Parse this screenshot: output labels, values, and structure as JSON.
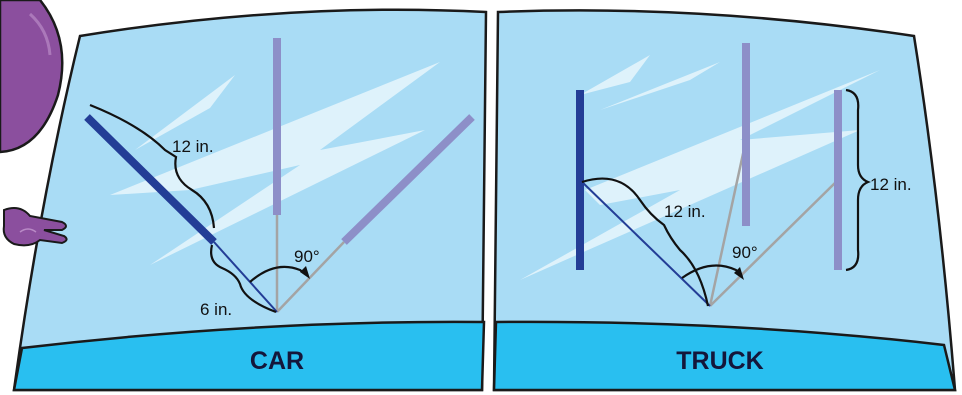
{
  "panels": {
    "car": {
      "title": "CAR",
      "blade_length": "12 in.",
      "arm_extension": "6 in.",
      "angle": "90°"
    },
    "truck": {
      "title": "TRUCK",
      "blade_length_left": "12 in.",
      "blade_length_right": "12 in.",
      "angle": "90°"
    }
  },
  "colors": {
    "glass": "#a9dcf5",
    "glass_outline": "#1a1a1a",
    "hood_strip": "#29bff0",
    "reflection": "#e3f4fc",
    "blade_dark": "#233d96",
    "blade_light": "#8d8fc8",
    "arm_dark": "#233d96",
    "arm_gray": "#a4a4a4",
    "mascot": "#8b4f9e"
  },
  "icons": [
    "mascot-head",
    "mascot-hand"
  ]
}
